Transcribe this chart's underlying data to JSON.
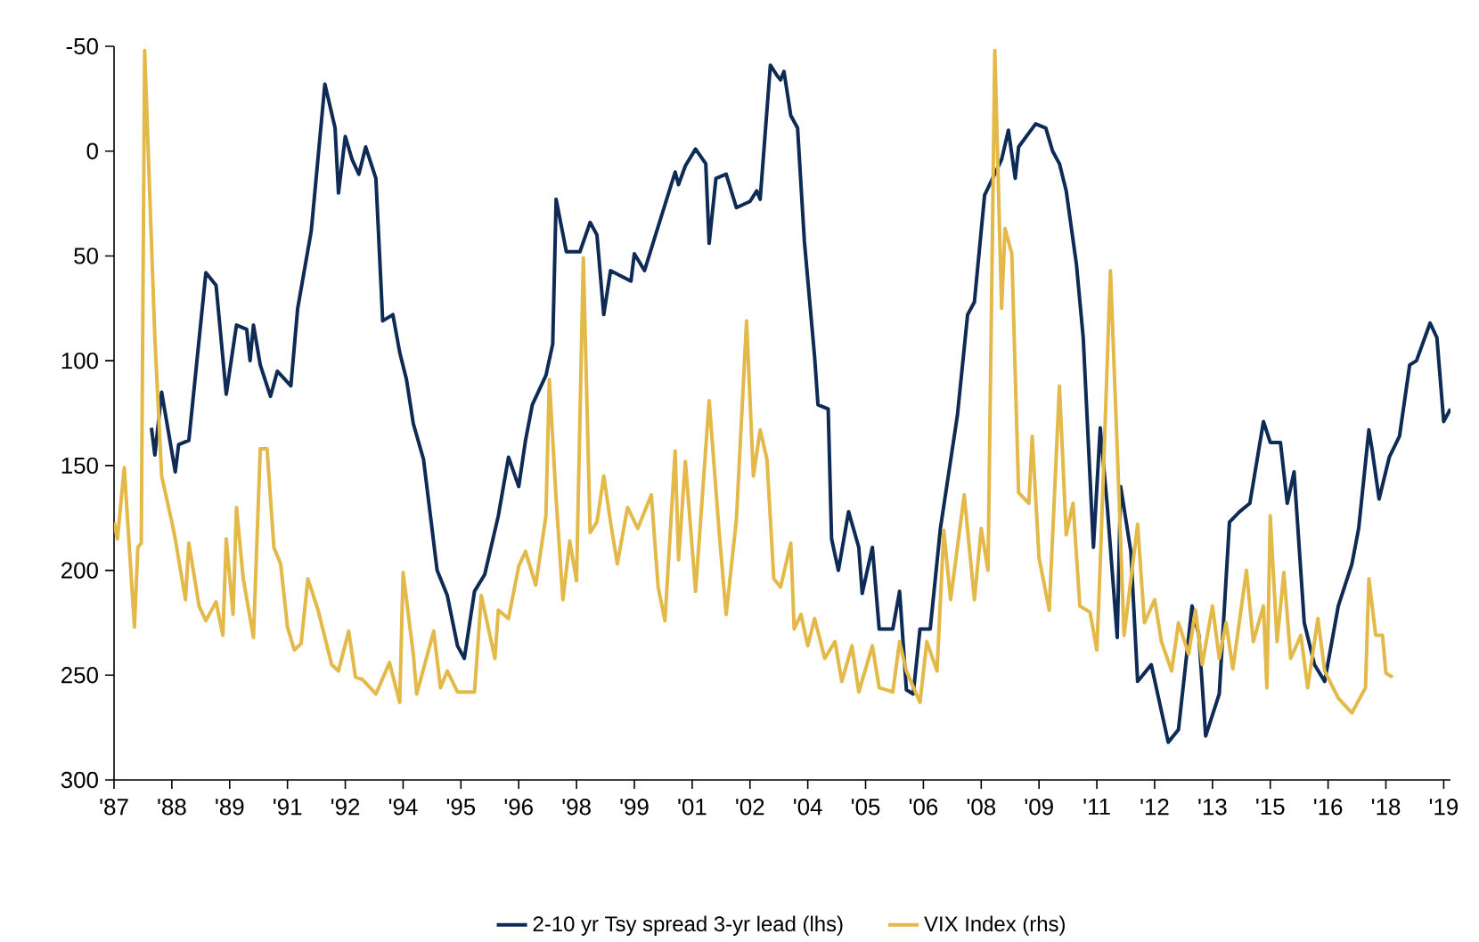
{
  "chart_data": {
    "type": "line",
    "legend": "bottom",
    "line_style": "solid",
    "grid": false,
    "xlim": [
      "1987-01",
      "2019-10"
    ],
    "ylim": [
      300,
      -50
    ],
    "yticks": [
      -50,
      0,
      50,
      100,
      150,
      200,
      250,
      300
    ],
    "xticks": [
      {
        "value": "1987-01",
        "label": "'87"
      },
      {
        "value": "1988-06",
        "label": "'88"
      },
      {
        "value": "1989-11",
        "label": "'89"
      },
      {
        "value": "1991-04",
        "label": "'91"
      },
      {
        "value": "1992-09",
        "label": "'92"
      },
      {
        "value": "1994-02",
        "label": "'94"
      },
      {
        "value": "1995-07",
        "label": "'95"
      },
      {
        "value": "1996-12",
        "label": "'96"
      },
      {
        "value": "1998-05",
        "label": "'98"
      },
      {
        "value": "1999-10",
        "label": "'99"
      },
      {
        "value": "2001-03",
        "label": "'01"
      },
      {
        "value": "2002-08",
        "label": "'02"
      },
      {
        "value": "2004-01",
        "label": "'04"
      },
      {
        "value": "2005-06",
        "label": "'05"
      },
      {
        "value": "2006-11",
        "label": "'06"
      },
      {
        "value": "2008-04",
        "label": "'08"
      },
      {
        "value": "2009-09",
        "label": "'09"
      },
      {
        "value": "2011-02",
        "label": "'11"
      },
      {
        "value": "2012-07",
        "label": "'12"
      },
      {
        "value": "2013-12",
        "label": "'13"
      },
      {
        "value": "2015-05",
        "label": "'15"
      },
      {
        "value": "2016-10",
        "label": "'16"
      },
      {
        "value": "2018-03",
        "label": "'18"
      },
      {
        "value": "2019-08",
        "label": "'19"
      }
    ],
    "series": [
      {
        "name": "2-10 yr Tsy spread 3-yr lead (lhs)",
        "color": "#0d2b55",
        "x": [
          "1987-12",
          "1988-01",
          "1988-03",
          "1988-07",
          "1988-08",
          "1988-11",
          "1989-01",
          "1989-04",
          "1989-07",
          "1989-10",
          "1990-01",
          "1990-04",
          "1990-05",
          "1990-06",
          "1990-08",
          "1990-11",
          "1991-01",
          "1991-05",
          "1991-07",
          "1991-11",
          "1992-03",
          "1992-06",
          "1992-07",
          "1992-09",
          "1992-11",
          "1993-01",
          "1993-03",
          "1993-06",
          "1993-08",
          "1993-11",
          "1994-01",
          "1994-03",
          "1994-05",
          "1994-08",
          "1994-12",
          "1995-03",
          "1995-06",
          "1995-08",
          "1995-11",
          "1996-02",
          "1996-06",
          "1996-09",
          "1996-12",
          "1997-02",
          "1997-04",
          "1997-08",
          "1997-10",
          "1997-11",
          "1998-02",
          "1998-06",
          "1998-09",
          "1998-11",
          "1999-01",
          "1999-03",
          "1999-09",
          "1999-10",
          "2000-01",
          "2000-05",
          "2000-10",
          "2000-11",
          "2001-01",
          "2001-04",
          "2001-07",
          "2001-08",
          "2001-10",
          "2002-01",
          "2002-04",
          "2002-08",
          "2002-10",
          "2002-11",
          "2003-02",
          "2003-04",
          "2003-05",
          "2003-06",
          "2003-08",
          "2003-10",
          "2003-12",
          "2004-03",
          "2004-04",
          "2004-07",
          "2004-08",
          "2004-10",
          "2005-01",
          "2005-04",
          "2005-05",
          "2005-08",
          "2005-10",
          "2006-02",
          "2006-04",
          "2006-06",
          "2006-08",
          "2006-10",
          "2007-01",
          "2007-04",
          "2007-09",
          "2007-12",
          "2008-02",
          "2008-05",
          "2008-10",
          "2008-12",
          "2009-02",
          "2009-03",
          "2009-08",
          "2009-11",
          "2010-01",
          "2010-03",
          "2010-05",
          "2010-08",
          "2010-10",
          "2011-01",
          "2011-03",
          "2011-05",
          "2011-08",
          "2011-09",
          "2011-12",
          "2012-02",
          "2012-06",
          "2012-11",
          "2013-02",
          "2013-06",
          "2013-08",
          "2013-10",
          "2014-02",
          "2014-05",
          "2014-08",
          "2014-11",
          "2015-03",
          "2015-05",
          "2015-08",
          "2015-10",
          "2015-12",
          "2016-03",
          "2016-06",
          "2016-09",
          "2017-01",
          "2017-05",
          "2017-07",
          "2017-10",
          "2017-11",
          "2018-01",
          "2018-04",
          "2018-07",
          "2018-10",
          "2018-12",
          "2019-04",
          "2019-06",
          "2019-08",
          "2019-10"
        ],
        "values": [
          132,
          145,
          115,
          153,
          140,
          138,
          106,
          58,
          64,
          116,
          83,
          85,
          100,
          83,
          102,
          117,
          105,
          112,
          75,
          38,
          -32,
          -11,
          20,
          -7,
          4,
          11,
          -2,
          13,
          81,
          78,
          96,
          109,
          130,
          147,
          200,
          212,
          236,
          242,
          210,
          202,
          174,
          146,
          160,
          138,
          121,
          107,
          92,
          23,
          48,
          48,
          34,
          40,
          78,
          57,
          62,
          49,
          57,
          36,
          10,
          16,
          7,
          -1,
          6,
          44,
          13,
          11,
          27,
          24,
          19,
          23,
          -41,
          -36,
          -34,
          -38,
          -17,
          -11,
          43,
          98,
          121,
          123,
          185,
          200,
          172,
          189,
          211,
          189,
          228,
          228,
          210,
          257,
          259,
          228,
          228,
          180,
          126,
          78,
          72,
          21,
          4,
          -10,
          13,
          -2,
          -13,
          -11,
          0,
          6,
          19,
          54,
          89,
          189,
          132,
          168,
          232,
          160,
          191,
          253,
          245,
          282,
          276,
          217,
          231,
          279,
          259,
          177,
          172,
          168,
          129,
          139,
          139,
          168,
          153,
          225,
          245,
          253,
          217,
          197,
          180,
          133,
          143,
          166,
          146,
          136,
          102,
          100,
          82,
          89,
          129,
          123
        ]
      },
      {
        "name": "VIX Index (rhs)",
        "color": "#e3b94a",
        "x": [
          "1987-01",
          "1987-02",
          "1987-04",
          "1987-07",
          "1987-08",
          "1987-09",
          "1987-10",
          "1988-01",
          "1988-03",
          "1988-06",
          "1988-07",
          "1988-10",
          "1988-11",
          "1989-02",
          "1989-04",
          "1989-07",
          "1989-09",
          "1989-10",
          "1989-12",
          "1990-01",
          "1990-03",
          "1990-06",
          "1990-08",
          "1990-10",
          "1990-12",
          "1991-02",
          "1991-04",
          "1991-06",
          "1991-08",
          "1991-10",
          "1992-01",
          "1992-05",
          "1992-07",
          "1992-10",
          "1992-12",
          "1993-02",
          "1993-06",
          "1993-10",
          "1994-01",
          "1994-02",
          "1994-05",
          "1994-06",
          "1994-11",
          "1995-01",
          "1995-03",
          "1995-06",
          "1995-11",
          "1996-01",
          "1996-05",
          "1996-06",
          "1996-09",
          "1996-12",
          "1997-02",
          "1997-05",
          "1997-08",
          "1997-09",
          "1997-11",
          "1998-01",
          "1998-03",
          "1998-05",
          "1998-07",
          "1998-09",
          "1998-11",
          "1999-01",
          "1999-03",
          "1999-05",
          "1999-08",
          "1999-11",
          "2000-03",
          "2000-05",
          "2000-07",
          "2000-10",
          "2000-11",
          "2001-01",
          "2001-04",
          "2001-08",
          "2001-11",
          "2002-01",
          "2002-04",
          "2002-07",
          "2002-09",
          "2002-11",
          "2003-01",
          "2003-03",
          "2003-05",
          "2003-08",
          "2003-09",
          "2003-11",
          "2004-01",
          "2004-03",
          "2004-06",
          "2004-09",
          "2004-11",
          "2005-02",
          "2005-04",
          "2005-08",
          "2005-10",
          "2006-02",
          "2006-04",
          "2006-06",
          "2006-10",
          "2006-12",
          "2007-03",
          "2007-05",
          "2007-07",
          "2007-11",
          "2008-02",
          "2008-04",
          "2008-06",
          "2008-08",
          "2008-10",
          "2008-11",
          "2009-01",
          "2009-03",
          "2009-06",
          "2009-07",
          "2009-09",
          "2009-12",
          "2010-03",
          "2010-05",
          "2010-07",
          "2010-09",
          "2010-12",
          "2011-02",
          "2011-03",
          "2011-06",
          "2011-08",
          "2011-10",
          "2012-02",
          "2012-04",
          "2012-07",
          "2012-09",
          "2012-12",
          "2013-02",
          "2013-05",
          "2013-07",
          "2013-09",
          "2013-12",
          "2014-02",
          "2014-04",
          "2014-06",
          "2014-10",
          "2014-12",
          "2015-03",
          "2015-04",
          "2015-05",
          "2015-07",
          "2015-09",
          "2015-11",
          "2016-02",
          "2016-04",
          "2016-07",
          "2016-09",
          "2017-01",
          "2017-05",
          "2017-07",
          "2017-09",
          "2017-10",
          "2017-12",
          "2018-02",
          "2018-03",
          "2018-05"
        ],
        "values": [
          177,
          185,
          151,
          227,
          189,
          187,
          -48,
          89,
          155,
          177,
          185,
          214,
          187,
          217,
          224,
          215,
          231,
          185,
          221,
          170,
          204,
          232,
          142,
          142,
          189,
          197,
          227,
          238,
          235,
          204,
          219,
          245,
          248,
          229,
          251,
          252,
          259,
          244,
          263,
          201,
          240,
          259,
          229,
          256,
          248,
          258,
          258,
          212,
          242,
          219,
          223,
          198,
          191,
          207,
          174,
          109,
          166,
          214,
          186,
          205,
          51,
          182,
          177,
          155,
          177,
          197,
          170,
          180,
          164,
          208,
          224,
          143,
          195,
          148,
          210,
          119,
          183,
          221,
          176,
          81,
          155,
          133,
          147,
          204,
          208,
          187,
          228,
          221,
          236,
          223,
          242,
          234,
          253,
          236,
          258,
          236,
          256,
          258,
          234,
          248,
          263,
          234,
          248,
          181,
          214,
          164,
          214,
          180,
          200,
          -48,
          75,
          37,
          49,
          163,
          168,
          136,
          194,
          219,
          112,
          183,
          168,
          217,
          220,
          238,
          197,
          57,
          142,
          231,
          178,
          225,
          214,
          234,
          248,
          225,
          240,
          219,
          245,
          217,
          242,
          225,
          247,
          200,
          234,
          217,
          256,
          174,
          234,
          201,
          242,
          231,
          256,
          223,
          248,
          261,
          268,
          262,
          256,
          204,
          231,
          231,
          249,
          251
        ]
      }
    ]
  }
}
